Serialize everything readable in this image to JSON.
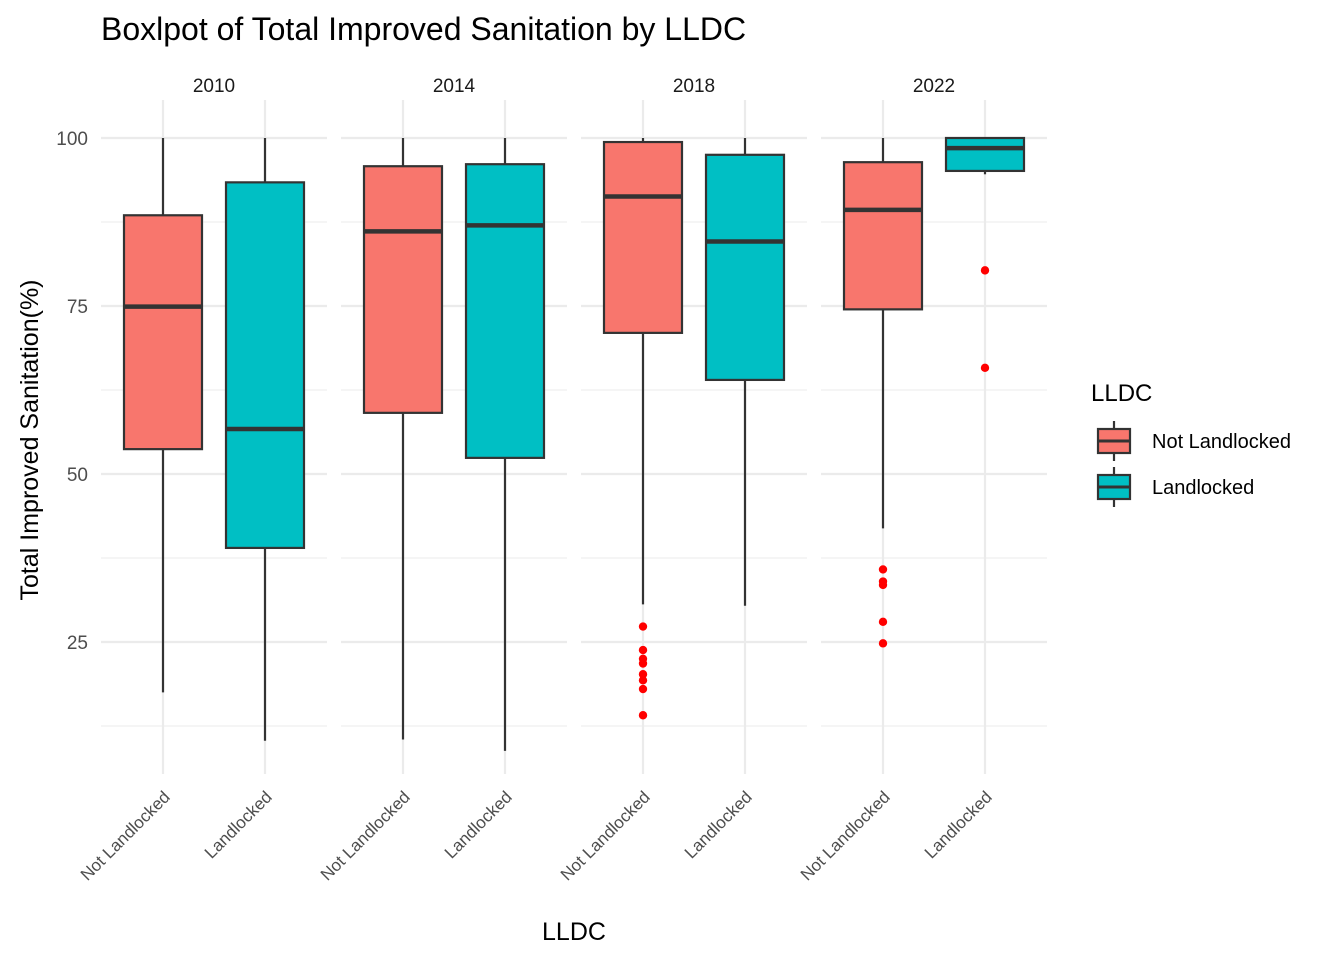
{
  "chart_data": {
    "type": "boxplot",
    "title": "Boxlpot of Total Improved Sanitation by LLDC",
    "xlabel": "LLDC",
    "ylabel": "Total Improved Sanitation(%)",
    "ylim": [
      5,
      104
    ],
    "yticks": [
      25,
      50,
      75,
      100
    ],
    "categories": [
      "Not Landlocked",
      "Landlocked"
    ],
    "facets": [
      "2010",
      "2014",
      "2018",
      "2022"
    ],
    "legend": {
      "title": "LLDC",
      "position": "right",
      "items": [
        {
          "label": "Not Landlocked",
          "color": "#F8766D"
        },
        {
          "label": "Landlocked",
          "color": "#00BFC4"
        }
      ]
    },
    "grid": true,
    "outlier_color": "#ff0000",
    "panels": [
      {
        "year": "2010",
        "boxes": [
          {
            "category": "Not Landlocked",
            "min": 17.5,
            "q1": 53.7,
            "median": 74.9,
            "q3": 88.5,
            "max": 100,
            "outliers": []
          },
          {
            "category": "Landlocked",
            "min": 10.3,
            "q1": 39.0,
            "median": 56.7,
            "q3": 93.4,
            "max": 100,
            "outliers": []
          }
        ]
      },
      {
        "year": "2014",
        "boxes": [
          {
            "category": "Not Landlocked",
            "min": 10.5,
            "q1": 59.1,
            "median": 86.1,
            "q3": 95.8,
            "max": 100,
            "outliers": []
          },
          {
            "category": "Landlocked",
            "min": 8.8,
            "q1": 52.4,
            "median": 87.0,
            "q3": 96.1,
            "max": 100,
            "outliers": []
          }
        ]
      },
      {
        "year": "2018",
        "boxes": [
          {
            "category": "Not Landlocked",
            "min": 30.6,
            "q1": 71.0,
            "median": 91.3,
            "q3": 99.4,
            "max": 100,
            "outliers": [
              27.3,
              23.8,
              22.5,
              21.8,
              20.2,
              19.3,
              18.0,
              14.1
            ]
          },
          {
            "category": "Landlocked",
            "min": 30.4,
            "q1": 64.0,
            "median": 84.6,
            "q3": 97.5,
            "max": 100,
            "outliers": []
          }
        ]
      },
      {
        "year": "2022",
        "boxes": [
          {
            "category": "Not Landlocked",
            "min": 41.9,
            "q1": 74.5,
            "median": 89.3,
            "q3": 96.4,
            "max": 100,
            "outliers": [
              35.8,
              34.0,
              33.5,
              28.0,
              24.8
            ]
          },
          {
            "category": "Landlocked",
            "min": 94.6,
            "q1": 95.1,
            "median": 98.5,
            "q3": 100,
            "max": 100,
            "outliers": [
              80.3,
              65.8
            ]
          }
        ]
      }
    ]
  }
}
